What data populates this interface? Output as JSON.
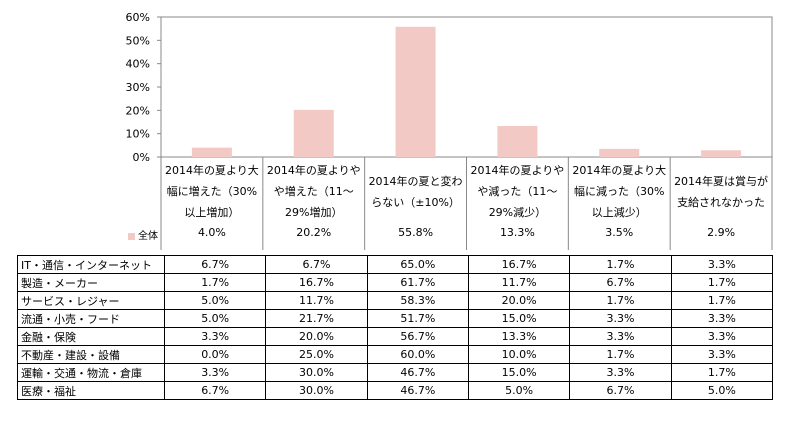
{
  "chart_data": {
    "type": "bar",
    "categories": [
      [
        "2014年の夏より大",
        "幅に増えた（30%",
        "以上増加）"
      ],
      [
        "2014年の夏よりや",
        "や増えた（11～",
        "29%増加）"
      ],
      [
        "2014年の夏と変わ",
        "らない（±10%）"
      ],
      [
        "2014年の夏よりや",
        "や減った（11～",
        "29%減少）"
      ],
      [
        "2014年の夏より大",
        "幅に減った（30%",
        "以上減少）"
      ],
      [
        "2014年夏は賞与が",
        "支給されなかった"
      ]
    ],
    "series": [
      {
        "name": "全体",
        "values": [
          4.0,
          20.2,
          55.8,
          13.3,
          3.5,
          2.9
        ],
        "labels": [
          "4.0%",
          "20.2%",
          "55.8%",
          "13.3%",
          "3.5%",
          "2.9%"
        ]
      }
    ],
    "yticks": [
      "0%",
      "10%",
      "20%",
      "30%",
      "40%",
      "50%",
      "60%"
    ],
    "ylim": [
      0,
      60
    ],
    "grid": false,
    "bar_color": "#f2c9c5"
  },
  "table": {
    "rows": [
      {
        "label": "IT・通信・インターネット",
        "values": [
          "6.7%",
          "6.7%",
          "65.0%",
          "16.7%",
          "1.7%",
          "3.3%"
        ]
      },
      {
        "label": "製造・メーカー",
        "values": [
          "1.7%",
          "16.7%",
          "61.7%",
          "11.7%",
          "6.7%",
          "1.7%"
        ]
      },
      {
        "label": "サービス・レジャー",
        "values": [
          "5.0%",
          "11.7%",
          "58.3%",
          "20.0%",
          "1.7%",
          "1.7%"
        ]
      },
      {
        "label": "流通・小売・フード",
        "values": [
          "5.0%",
          "21.7%",
          "51.7%",
          "15.0%",
          "3.3%",
          "3.3%"
        ]
      },
      {
        "label": "金融・保険",
        "values": [
          "3.3%",
          "20.0%",
          "56.7%",
          "13.3%",
          "3.3%",
          "3.3%"
        ]
      },
      {
        "label": "不動産・建設・設備",
        "values": [
          "0.0%",
          "25.0%",
          "60.0%",
          "10.0%",
          "1.7%",
          "3.3%"
        ]
      },
      {
        "label": "運輸・交通・物流・倉庫",
        "values": [
          "3.3%",
          "30.0%",
          "46.7%",
          "15.0%",
          "3.3%",
          "1.7%"
        ]
      },
      {
        "label": "医療・福祉",
        "values": [
          "6.7%",
          "30.0%",
          "46.7%",
          "5.0%",
          "6.7%",
          "5.0%"
        ]
      }
    ]
  }
}
